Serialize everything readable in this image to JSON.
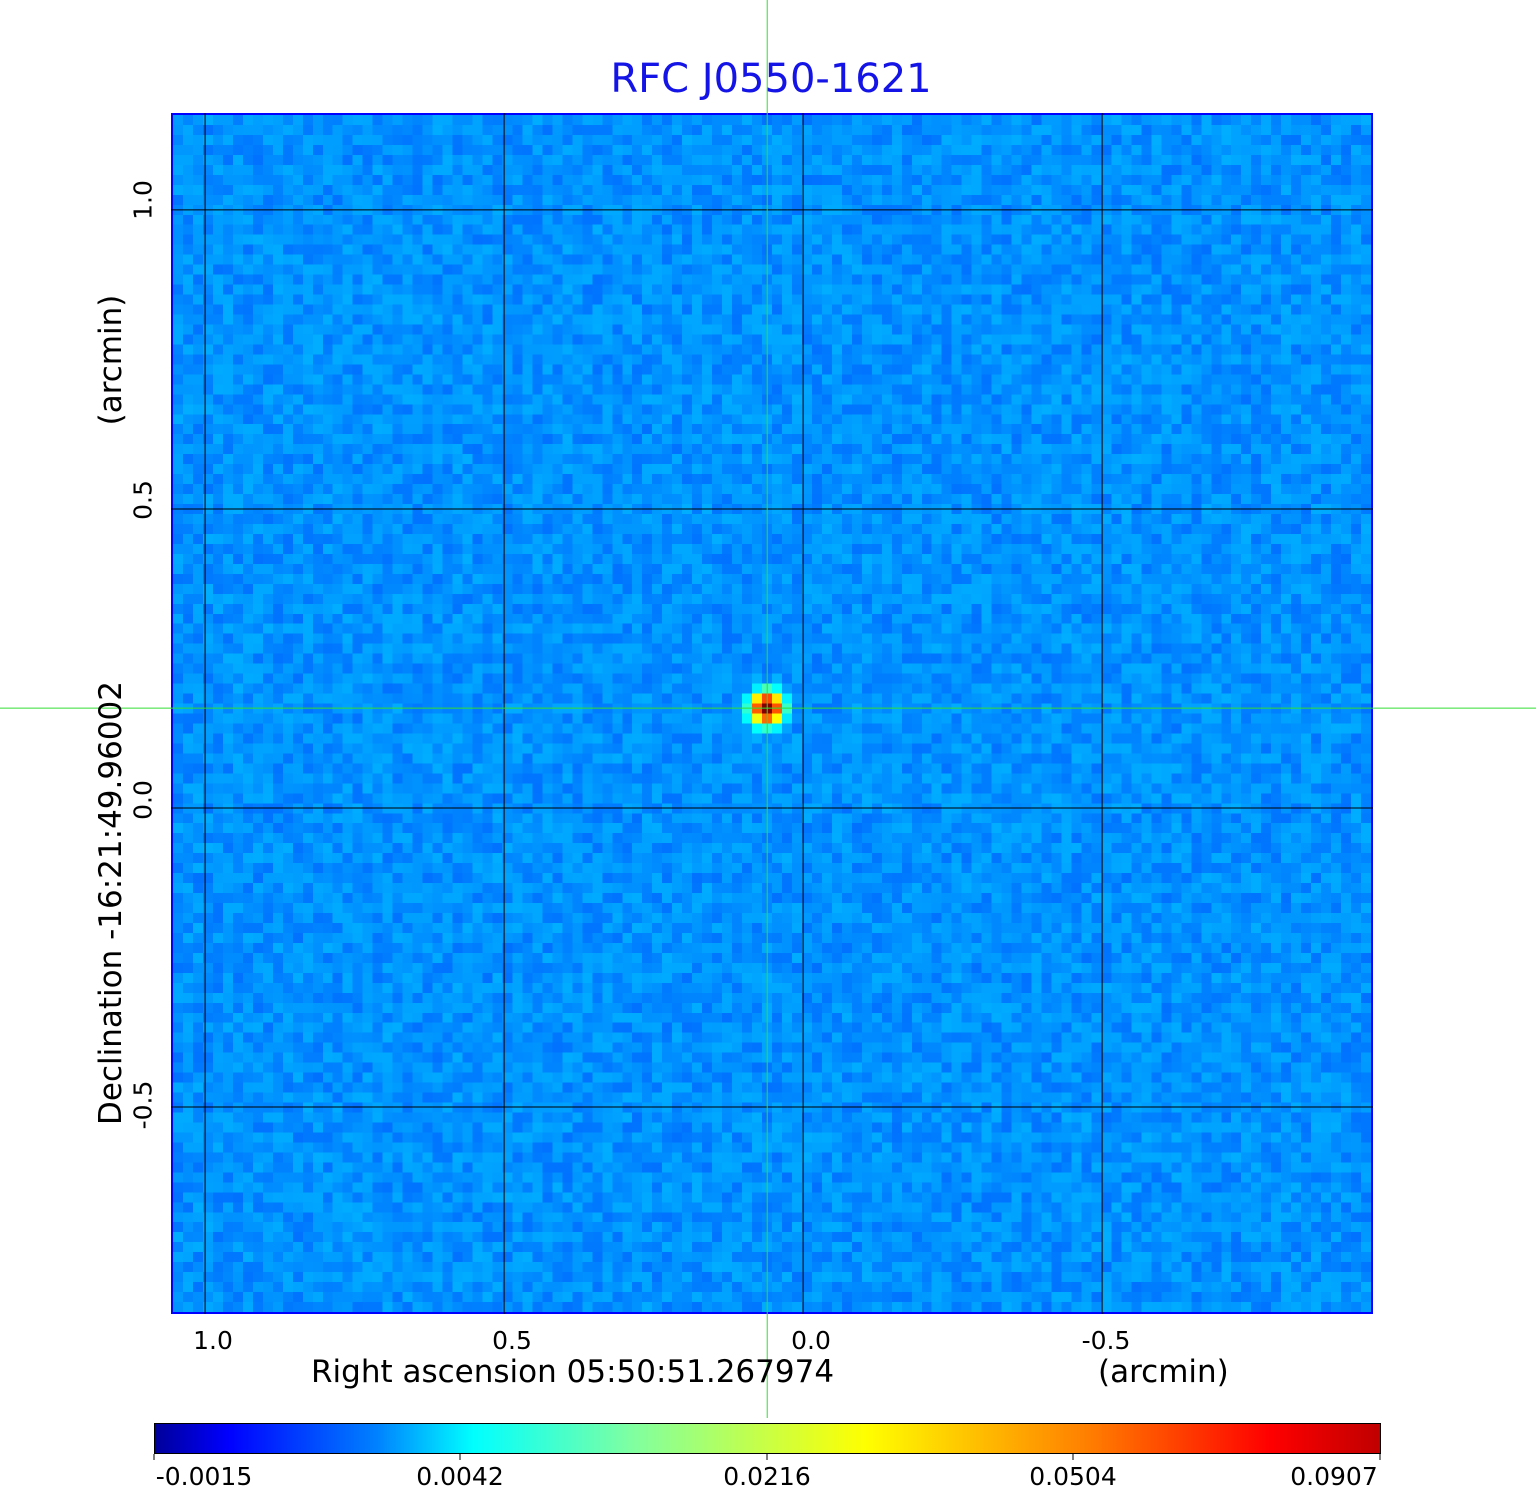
{
  "chart_data": {
    "type": "heatmap",
    "title": "RFC J0550-1621",
    "xlabel": "Right ascension  05:50:51.267974",
    "xunit": "(arcmin)",
    "ylabel": "Declination  -16:21:49.96002",
    "yunit": "(arcmin)",
    "xlim": [
      1.057,
      -0.953
    ],
    "ylim": [
      -0.846,
      1.162
    ],
    "x_ticks": [
      1.0,
      0.5,
      0.0,
      -0.5
    ],
    "x_tick_labels": [
      "1.0",
      "0.5",
      "0.0",
      "-0.5"
    ],
    "y_ticks": [
      1.0,
      0.5,
      0.0,
      -0.5
    ],
    "y_tick_labels": [
      "1.0",
      "0.5",
      "0.0",
      "-0.5"
    ],
    "grid": true,
    "grid_color": "#000000",
    "crosshair": {
      "x": 0.06,
      "y": 0.167,
      "color": "#33dd33"
    },
    "source": {
      "x": 0.06,
      "y": 0.167,
      "peak": 0.0907
    },
    "colormap": "jet",
    "colorbar": {
      "ticks": [
        -0.0015,
        0.0042,
        0.0216,
        0.0504,
        0.0907
      ],
      "tick_labels": [
        "-0.0015",
        "0.0042",
        "0.0216",
        "0.0504",
        "0.0907"
      ],
      "placement": "bottom"
    },
    "background_color": "#1446f0"
  }
}
